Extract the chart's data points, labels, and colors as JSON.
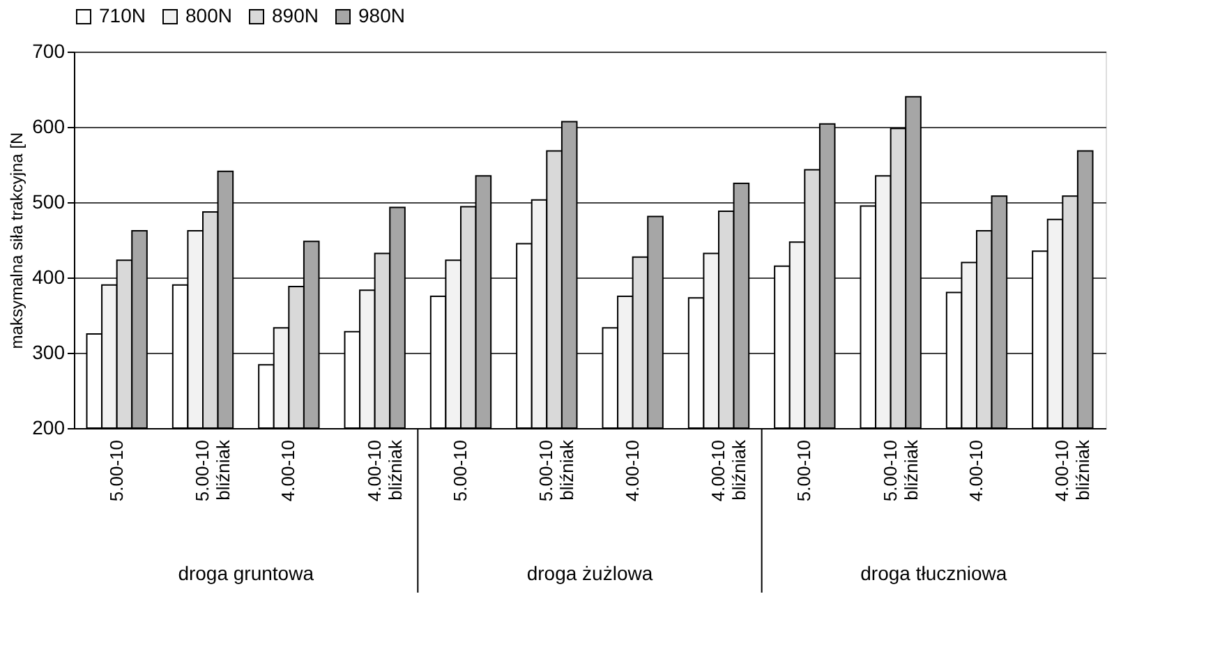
{
  "chart_data": {
    "type": "bar",
    "categories": [
      "5.00-10",
      "5.00-10 bliźniak",
      "4.00-10",
      "4.00-10 bliźniak",
      "5.00-10",
      "5.00-10 bliźniak",
      "4.00-10",
      "4.00-10 bliźniak",
      "5.00-10",
      "5.00-10 bliźniak",
      "4.00-10",
      "4.00-10 bliźniak"
    ],
    "ylabel": "maksymalna siła trakcyjna [N",
    "series": [
      {
        "name": "710N",
        "color": "#ffffff",
        "values": [
          325,
          390,
          284,
          328,
          375,
          445,
          333,
          373,
          415,
          495,
          380,
          435
        ]
      },
      {
        "name": "800N",
        "color": "#f2f2f2",
        "values": [
          390,
          462,
          333,
          383,
          423,
          503,
          375,
          432,
          447,
          535,
          420,
          477
        ]
      },
      {
        "name": "890N",
        "color": "#d9d9d9",
        "values": [
          423,
          487,
          388,
          432,
          494,
          568,
          427,
          488,
          543,
          598,
          462,
          508
        ]
      },
      {
        "name": "980N",
        "color": "#a6a6a6",
        "values": [
          462,
          541,
          448,
          493,
          535,
          607,
          481,
          525,
          604,
          640,
          508,
          568
        ]
      }
    ],
    "annotations": [
      "droga gruntowa",
      "droga żużlowa",
      "droga tłuczniowa"
    ],
    "ylim": [
      200,
      700
    ],
    "yticks": [
      200,
      300,
      400,
      500,
      600,
      700
    ],
    "grid": "y",
    "legend": "top"
  }
}
